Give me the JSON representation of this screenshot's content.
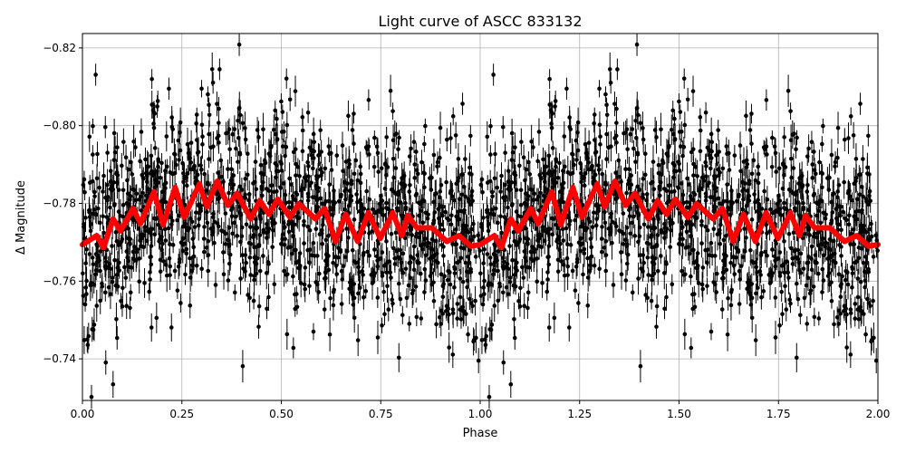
{
  "chart_data": {
    "type": "scatter",
    "title": "Light curve of ASCC 833132",
    "xlabel": "Phase",
    "ylabel": "Δ Magnitude",
    "xlim": [
      0,
      2
    ],
    "ylim": [
      -0.7293,
      -0.8237
    ],
    "y_inverted": true,
    "grid": true,
    "xticks": [
      "0.00",
      "0.25",
      "0.50",
      "0.75",
      "1.00",
      "1.25",
      "1.50",
      "1.75",
      "2.00"
    ],
    "yticks": [
      "−0.82",
      "−0.80",
      "−0.78",
      "−0.76",
      "−0.74"
    ],
    "ytick_values": [
      -0.82,
      -0.8,
      -0.78,
      -0.76,
      -0.74
    ],
    "scatter_color": "#000000",
    "curve_color": "#ff0000",
    "model_curve": {
      "phase": [
        0.0,
        0.036,
        0.053,
        0.077,
        0.096,
        0.127,
        0.146,
        0.18,
        0.203,
        0.233,
        0.256,
        0.294,
        0.313,
        0.339,
        0.366,
        0.389,
        0.423,
        0.446,
        0.469,
        0.491,
        0.522,
        0.544,
        0.586,
        0.609,
        0.636,
        0.662,
        0.692,
        0.719,
        0.749,
        0.78,
        0.803,
        0.818,
        0.841,
        0.879,
        0.916,
        0.947,
        0.977,
        1.0,
        1.036,
        1.053,
        1.077,
        1.096,
        1.127,
        1.146,
        1.18,
        1.203,
        1.233,
        1.256,
        1.294,
        1.313,
        1.339,
        1.366,
        1.389,
        1.423,
        1.446,
        1.469,
        1.491,
        1.522,
        1.544,
        1.586,
        1.609,
        1.636,
        1.662,
        1.692,
        1.719,
        1.749,
        1.78,
        1.803,
        1.818,
        1.841,
        1.879,
        1.916,
        1.947,
        1.977,
        2.0
      ],
      "magnitude": [
        -0.7694,
        -0.7717,
        -0.7686,
        -0.776,
        -0.7729,
        -0.7787,
        -0.7748,
        -0.783,
        -0.7745,
        -0.7841,
        -0.7764,
        -0.785,
        -0.7791,
        -0.7857,
        -0.7795,
        -0.7826,
        -0.776,
        -0.7807,
        -0.7772,
        -0.7811,
        -0.7764,
        -0.7799,
        -0.776,
        -0.7787,
        -0.7702,
        -0.7772,
        -0.7702,
        -0.7776,
        -0.771,
        -0.7776,
        -0.7717,
        -0.7769,
        -0.7737,
        -0.7737,
        -0.7702,
        -0.7717,
        -0.769,
        -0.7694,
        -0.7717,
        -0.7686,
        -0.776,
        -0.7729,
        -0.7787,
        -0.7748,
        -0.783,
        -0.7745,
        -0.7841,
        -0.7764,
        -0.785,
        -0.7791,
        -0.7857,
        -0.7795,
        -0.7826,
        -0.776,
        -0.7807,
        -0.7772,
        -0.7811,
        -0.7764,
        -0.7799,
        -0.776,
        -0.7787,
        -0.7702,
        -0.7772,
        -0.7702,
        -0.7776,
        -0.771,
        -0.7776,
        -0.7717,
        -0.7769,
        -0.7737,
        -0.7737,
        -0.7702,
        -0.7717,
        -0.769,
        -0.7694
      ]
    }
  }
}
